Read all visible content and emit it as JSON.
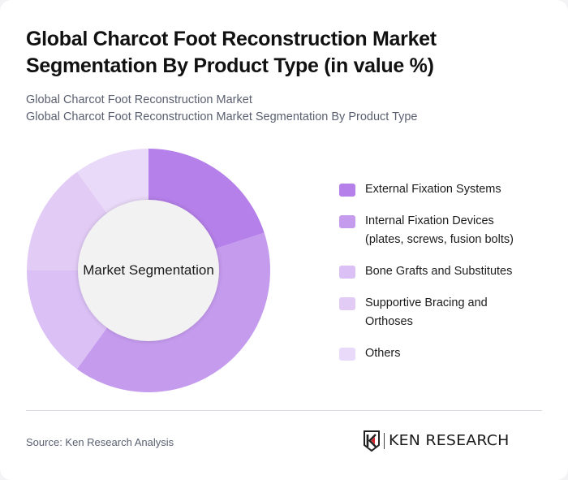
{
  "header": {
    "title": "Global Charcot Foot Reconstruction Market Segmentation By Product Type (in value %)",
    "subtitle_line1": "Global Charcot Foot Reconstruction Market",
    "subtitle_line2": "Global Charcot Foot Reconstruction Market Segmentation By Product Type"
  },
  "chart": {
    "center_label": "Market Segmentation"
  },
  "legend": {
    "items": [
      {
        "label": "External Fixation Systems",
        "color": "#b580ea"
      },
      {
        "label": "Internal Fixation Devices (plates, screws, fusion bolts)",
        "color": "#c59bee"
      },
      {
        "label": "Bone Grafts and Substitutes",
        "color": "#dac0f5"
      },
      {
        "label": "Supportive Bracing and Orthoses",
        "color": "#e2ccf6"
      },
      {
        "label": "Others",
        "color": "#eadaf9"
      }
    ]
  },
  "footer": {
    "source": "Source: Ken Research Analysis",
    "logo_text": "KEN RESEARCH"
  },
  "chart_data": {
    "type": "pie",
    "variant": "donut",
    "title": "Global Charcot Foot Reconstruction Market Segmentation By Product Type (in value %)",
    "subtitle": "Global Charcot Foot Reconstruction Market Segmentation By Product Type",
    "center_label": "Market Segmentation",
    "categories": [
      "External Fixation Systems",
      "Internal Fixation Devices (plates, screws, fusion bolts)",
      "Bone Grafts and Substitutes",
      "Supportive Bracing and Orthoses",
      "Others"
    ],
    "values": [
      20,
      40,
      15,
      15,
      10
    ],
    "unit": "%",
    "colors": [
      "#b580ea",
      "#c59bee",
      "#dac0f5",
      "#e2ccf6",
      "#eadaf9"
    ],
    "start_angle_deg": 0,
    "direction": "clockwise",
    "legend_position": "right",
    "data_labels": false
  }
}
